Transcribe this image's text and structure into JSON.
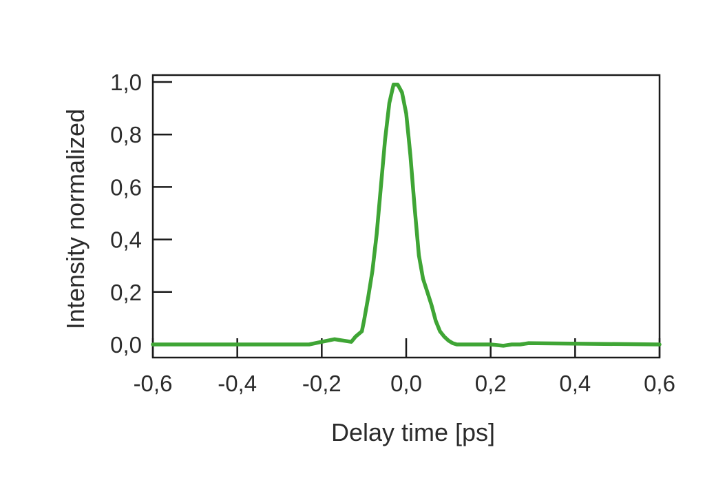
{
  "chart_data": {
    "type": "line",
    "title": "",
    "xlabel": "Delay time [ps]",
    "ylabel": "Intensity normalized",
    "xlim": [
      -0.6,
      0.6
    ],
    "ylim": [
      0.0,
      1.0
    ],
    "x_ticks": [
      "-0,6",
      "-0,4",
      "-0,2",
      "0,0",
      "0,2",
      "0,4",
      "0,6"
    ],
    "y_ticks": [
      "0,0",
      "0,2",
      "0,4",
      "0,6",
      "0,8",
      "1,0"
    ],
    "grid": false,
    "legend": "none",
    "series": [
      {
        "color": "#3fa535",
        "x": [
          -0.6,
          -0.4,
          -0.23,
          -0.2,
          -0.17,
          -0.15,
          -0.13,
          -0.12,
          -0.105,
          -0.1,
          -0.09,
          -0.08,
          -0.07,
          -0.06,
          -0.05,
          -0.04,
          -0.03,
          -0.02,
          -0.01,
          0.0,
          0.005,
          0.01,
          0.02,
          0.03,
          0.04,
          0.05,
          0.06,
          0.07,
          0.08,
          0.09,
          0.1,
          0.11,
          0.12,
          0.14,
          0.16,
          0.2,
          0.23,
          0.25,
          0.27,
          0.29,
          0.6
        ],
        "y": [
          0.0,
          0.0,
          0.0,
          0.01,
          0.02,
          0.015,
          0.01,
          0.03,
          0.05,
          0.09,
          0.18,
          0.28,
          0.42,
          0.6,
          0.78,
          0.92,
          0.99,
          0.99,
          0.96,
          0.88,
          0.8,
          0.72,
          0.52,
          0.34,
          0.25,
          0.2,
          0.15,
          0.09,
          0.05,
          0.03,
          0.015,
          0.005,
          0.0,
          0.0,
          0.0,
          0.0,
          -0.005,
          0.0,
          0.0,
          0.005,
          0.0
        ]
      }
    ]
  }
}
